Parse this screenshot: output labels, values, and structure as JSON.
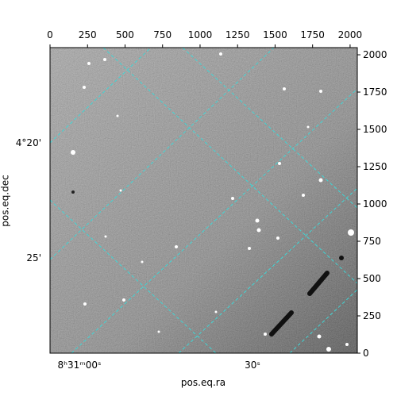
{
  "chart_data": {
    "type": "image",
    "xlabel": "pos.eq.ra",
    "ylabel": "pos.eq.dec",
    "xlim": [
      0,
      2048
    ],
    "xticks": [
      0,
      250,
      500,
      750,
      1000,
      1250,
      1500,
      1750,
      2000
    ],
    "ylim": [
      0,
      2048
    ],
    "yticks": [
      0,
      250,
      500,
      750,
      1000,
      1250,
      1500,
      1750,
      2000
    ],
    "ra_labels": [
      "8ʰ31ᵐ00ˢ",
      "30ˢ"
    ],
    "dec_labels": [
      "4°20'",
      "25'"
    ],
    "grid": true,
    "grid_color": "#3fd6d6"
  }
}
